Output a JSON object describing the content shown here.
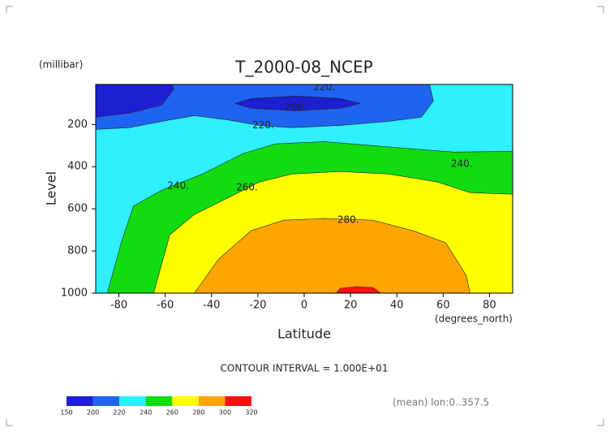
{
  "chart_data": {
    "type": "contour",
    "title": "T_2000-08_NCEP",
    "y_units": "(millibar)",
    "y_label": "Level",
    "x_label": "Latitude",
    "x_units": "(degrees_north)",
    "footnote": "CONTOUR INTERVAL = 1.000E+01",
    "annotation": "(mean) lon:0..357.5",
    "xlim": [
      -90,
      90
    ],
    "ylim": [
      1000,
      10
    ],
    "xticks": [
      -80,
      -60,
      -40,
      -20,
      0,
      20,
      40,
      60,
      80
    ],
    "yticks": [
      200,
      400,
      600,
      800,
      1000
    ],
    "colorbar": {
      "bounds": [
        150,
        200,
        220,
        240,
        260,
        280,
        300,
        320
      ],
      "colors": [
        "#1e1ed2",
        "#1e64f0",
        "#2ef0ff",
        "#10dc10",
        "#ffff00",
        "#ffa500",
        "#ff1010"
      ]
    },
    "regions": [
      {
        "min": 220,
        "x": [
          -90,
          90,
          90,
          -90
        ],
        "y": [
          10,
          10,
          1000,
          1000
        ]
      },
      {
        "min": 240,
        "x": [
          -85,
          -79,
          -73.7,
          -61.5,
          -43.9,
          -26.4,
          -12.4,
          8.6,
          29.6,
          50.6,
          64.6,
          90,
          90
        ],
        "y": [
          1000,
          761,
          588,
          511,
          435,
          338,
          292,
          281,
          300,
          319,
          331,
          327,
          1000
        ]
      },
      {
        "min": 260,
        "x": [
          -65,
          -58,
          -47.4,
          -33.4,
          -19.4,
          -5.4,
          15.6,
          36.6,
          57.6,
          71.6,
          90,
          90
        ],
        "y": [
          1000,
          723,
          627,
          550,
          473,
          435,
          423,
          435,
          473,
          523,
          531,
          1000
        ]
      },
      {
        "min": 280,
        "x": [
          -47.4,
          -36.9,
          -22.9,
          -8.9,
          8.6,
          29.6,
          47.1,
          61.1,
          69.9,
          71.6
        ],
        "y": [
          1000,
          838,
          704,
          654,
          646,
          654,
          704,
          761,
          915,
          1000
        ]
      },
      {
        "min": 300,
        "x": [
          13.8,
          15.6,
          22.6,
          29.6,
          33.1
        ],
        "y": [
          1000,
          977,
          969,
          973,
          1000
        ]
      },
      {
        "min": 200,
        "x": [
          -90,
          -90,
          -75.5,
          -61.5,
          -47.4,
          -33.4,
          -19.4,
          -5.4,
          15.6,
          36.6,
          50.6,
          55.8,
          54.1
        ],
        "y": [
          10,
          223,
          215,
          185,
          158,
          177,
          204,
          215,
          204,
          185,
          165,
          88,
          10
        ]
      },
      {
        "min": 150,
        "x": [
          -90,
          -90,
          -75.5,
          -61.5,
          -56.2,
          -57.2
        ],
        "y": [
          10,
          165,
          146,
          108,
          31,
          10
        ]
      },
      {
        "min": 150,
        "x": [
          -29.9,
          -22.9,
          -3.7,
          15.6,
          24.3,
          15.6,
          -3.7,
          -22.9
        ],
        "y": [
          100,
          77,
          65,
          77,
          100,
          123,
          135,
          123
        ]
      }
    ],
    "contour_labels": [
      {
        "x": 8.6,
        "y": 23,
        "value": 220,
        "label": "220."
      },
      {
        "x": -3.7,
        "y": 119,
        "value": 200,
        "label": "200."
      },
      {
        "x": -17.7,
        "y": 204,
        "value": 220,
        "label": "220."
      },
      {
        "x": 68,
        "y": 388,
        "value": 240,
        "label": "240."
      },
      {
        "x": -54.4,
        "y": 492,
        "value": 240,
        "label": "240."
      },
      {
        "x": -24.7,
        "y": 500,
        "value": 260,
        "label": "260."
      },
      {
        "x": 19,
        "y": 654,
        "value": 280,
        "label": "280."
      }
    ]
  }
}
